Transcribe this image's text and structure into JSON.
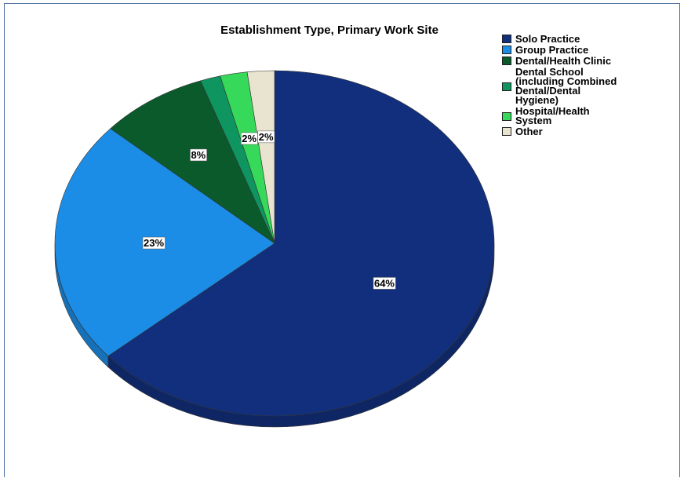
{
  "chart_data": {
    "type": "pie",
    "title": "Establishment Type, Primary Work Site",
    "legend_position": "top-right",
    "slices": [
      {
        "name": "Solo Practice",
        "value": 64,
        "label": "64%",
        "color": "#112f7c"
      },
      {
        "name": "Group Practice",
        "value": 23,
        "label": "23%",
        "color": "#1b8de6"
      },
      {
        "name": "Dental/Health Clinic",
        "value": 8,
        "label": "8%",
        "color": "#0b5a2c"
      },
      {
        "name": "Dental School\n(including Combined\nDental/Dental\nHygiene)",
        "value": 1.5,
        "label": "",
        "color": "#0e9560"
      },
      {
        "name": "Hospital/Health\nSystem",
        "value": 2,
        "label": "2%",
        "color": "#36d95a"
      },
      {
        "name": "Other",
        "value": 2,
        "label": "2%",
        "color": "#e8e4cf"
      }
    ]
  }
}
